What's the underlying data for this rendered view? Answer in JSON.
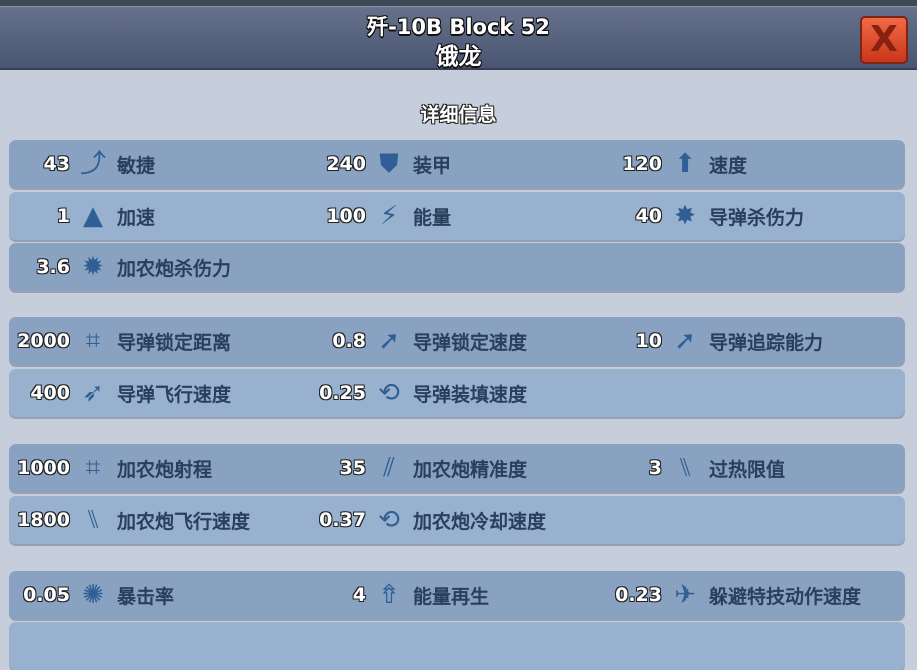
{
  "header": {
    "title": "歼-10B Block 52",
    "subtitle": "饿龙",
    "close_label": "X"
  },
  "section_title": "详细信息",
  "rows": [
    {
      "style": "dark",
      "stats": [
        {
          "value": "43",
          "icon": "agility-icon",
          "glyph": "⤴",
          "label": "敏捷"
        },
        {
          "value": "240",
          "icon": "shield-icon",
          "glyph": "⛊",
          "label": "装甲"
        },
        {
          "value": "120",
          "icon": "speed-icon",
          "glyph": "⬆",
          "label": "速度"
        }
      ]
    },
    {
      "style": "light",
      "stats": [
        {
          "value": "1",
          "icon": "acceleration-icon",
          "glyph": "▲",
          "label": "加速"
        },
        {
          "value": "100",
          "icon": "energy-icon",
          "glyph": "⚡",
          "label": "能量"
        },
        {
          "value": "40",
          "icon": "missile-damage-icon",
          "glyph": "✸",
          "label": "导弹杀伤力"
        }
      ]
    },
    {
      "style": "dark",
      "stats": [
        {
          "value": "3.6",
          "icon": "cannon-damage-icon",
          "glyph": "✹",
          "label": "加农炮杀伤力"
        }
      ]
    },
    {
      "style": "dark",
      "stats": [
        {
          "value": "2000",
          "icon": "missile-lock-range-icon",
          "glyph": "⌗",
          "label": "导弹锁定距离"
        },
        {
          "value": "0.8",
          "icon": "missile-lock-speed-icon",
          "glyph": "➚",
          "label": "导弹锁定速度"
        },
        {
          "value": "10",
          "icon": "missile-tracking-icon",
          "glyph": "➚",
          "label": "导弹追踪能力"
        }
      ]
    },
    {
      "style": "light",
      "stats": [
        {
          "value": "400",
          "icon": "missile-flight-speed-icon",
          "glyph": "➶",
          "label": "导弹飞行速度"
        },
        {
          "value": "0.25",
          "icon": "missile-reload-icon",
          "glyph": "⟲",
          "label": "导弹装填速度"
        }
      ]
    },
    {
      "style": "dark",
      "stats": [
        {
          "value": "1000",
          "icon": "cannon-range-icon",
          "glyph": "⌗",
          "label": "加农炮射程"
        },
        {
          "value": "35",
          "icon": "cannon-accuracy-icon",
          "glyph": "⫽",
          "label": "加农炮精准度"
        },
        {
          "value": "3",
          "icon": "overheat-icon",
          "glyph": "⑊",
          "label": "过热限值"
        }
      ]
    },
    {
      "style": "light",
      "stats": [
        {
          "value": "1800",
          "icon": "cannon-flight-speed-icon",
          "glyph": "⑊",
          "label": "加农炮飞行速度"
        },
        {
          "value": "0.37",
          "icon": "cannon-cooldown-icon",
          "glyph": "⟲",
          "label": "加农炮冷却速度"
        }
      ]
    },
    {
      "style": "dark",
      "stats": [
        {
          "value": "0.05",
          "icon": "critical-rate-icon",
          "glyph": "✺",
          "label": "暴击率"
        },
        {
          "value": "4",
          "icon": "energy-regen-icon",
          "glyph": "⇮",
          "label": "能量再生"
        },
        {
          "value": "0.23",
          "icon": "evasion-speed-icon",
          "glyph": "✈",
          "label": "躲避特技动作速度"
        }
      ]
    }
  ],
  "colors": {
    "background": "#c6cddb",
    "row_dark": "#89a2c1",
    "row_light": "#98b1ce",
    "close_button": "#e0502e",
    "icon": "#2f5f94"
  }
}
